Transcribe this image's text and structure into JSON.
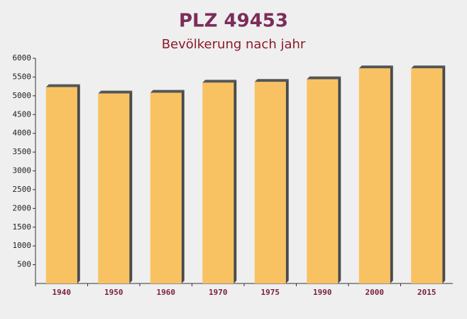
{
  "chart_data": {
    "type": "bar",
    "title": "PLZ 49453",
    "subtitle": "Bevölkerung nach jahr",
    "categories": [
      "1940",
      "1950",
      "1960",
      "1970",
      "1975",
      "1990",
      "2000",
      "2015"
    ],
    "values": [
      5230,
      5060,
      5080,
      5350,
      5370,
      5440,
      5730,
      5730
    ],
    "color": "#f8c263",
    "ylim": [
      0,
      6000
    ],
    "yticks": [
      500,
      1000,
      1500,
      2000,
      2500,
      3000,
      3500,
      4000,
      4500,
      5000,
      5500,
      6000
    ]
  }
}
